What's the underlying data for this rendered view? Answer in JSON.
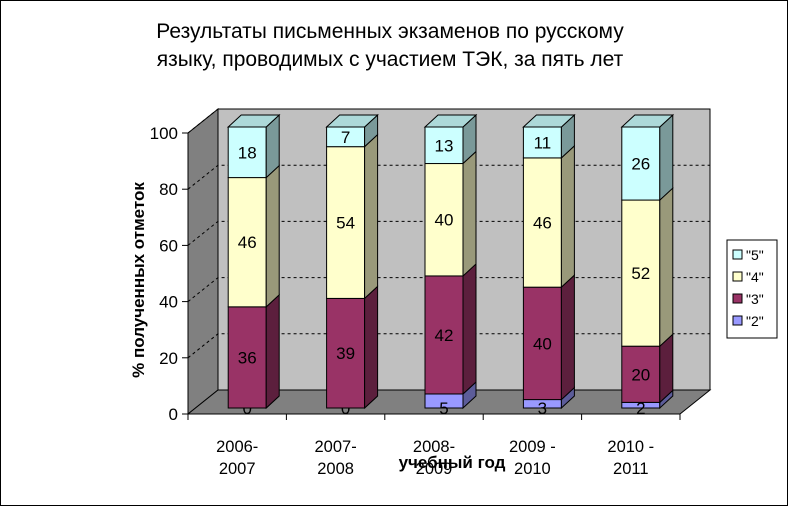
{
  "chart_data": {
    "type": "bar",
    "stacked": true,
    "three_d": true,
    "title_line1": "Результаты письменных экзаменов по русскому",
    "title_line2": "языку, проводимых с участием ТЭК, за пять лет",
    "xlabel": "учебный год",
    "ylabel": "% полученных отметок",
    "ylim": [
      0,
      100
    ],
    "yticks": [
      "0",
      "20",
      "40",
      "60",
      "80",
      "100"
    ],
    "categories": [
      [
        "2006-",
        "2007"
      ],
      [
        "2007-",
        "2008"
      ],
      [
        "2008-",
        "2009"
      ],
      [
        "2009 -",
        "2010"
      ],
      [
        "2010 -",
        "2011"
      ]
    ],
    "series": [
      {
        "name": "\"2\"",
        "color": "#9999ff",
        "values": [
          0,
          0,
          5,
          3,
          2
        ],
        "labels": [
          "0",
          "0",
          "5",
          "3",
          "2"
        ]
      },
      {
        "name": "\"3\"",
        "color": "#993366",
        "values": [
          36,
          39,
          42,
          40,
          20
        ],
        "labels": [
          "36",
          "39",
          "42",
          "40",
          "20"
        ]
      },
      {
        "name": "\"4\"",
        "color": "#ffffcc",
        "values": [
          46,
          54,
          40,
          46,
          52
        ],
        "labels": [
          "46",
          "54",
          "40",
          "46",
          "52"
        ]
      },
      {
        "name": "\"5\"",
        "color": "#ccffff",
        "values": [
          18,
          7,
          13,
          11,
          26
        ],
        "labels": [
          "18",
          "7",
          "13",
          "11",
          "26"
        ]
      }
    ],
    "legend_order": [
      "\"5\"",
      "\"4\"",
      "\"3\"",
      "\"2\""
    ],
    "legend_position": "right",
    "wall_color": "#c0c0c0",
    "floor_color": "#808080"
  }
}
